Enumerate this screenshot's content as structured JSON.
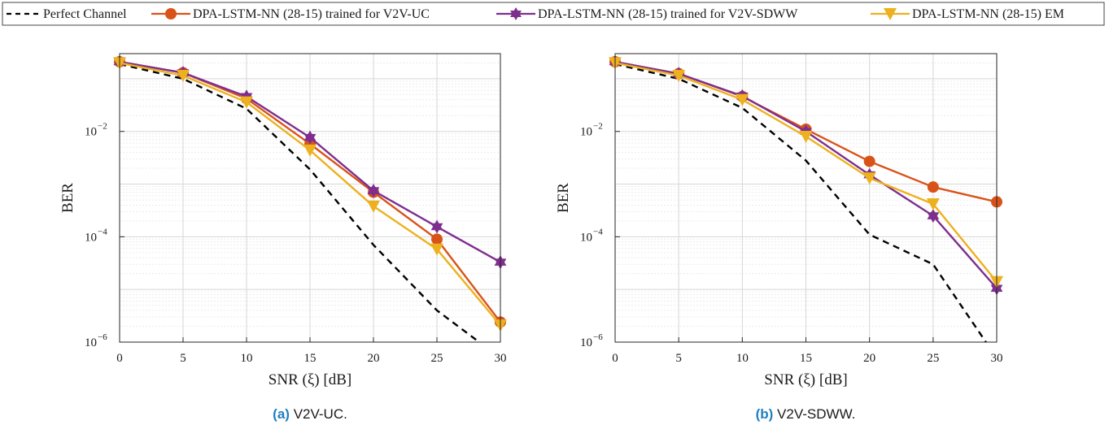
{
  "legend": {
    "items": [
      {
        "key": "perfect",
        "label": "Perfect Channel"
      },
      {
        "key": "uc",
        "label": "DPA-LSTM-NN (28-15) trained for V2V-UC"
      },
      {
        "key": "sdww",
        "label": "DPA-LSTM-NN (28-15) trained for V2V-SDWW"
      },
      {
        "key": "em",
        "label": "DPA-LSTM-NN (28-15) EM"
      }
    ]
  },
  "colors": {
    "perfect": "#000000",
    "uc": "#d95319",
    "sdww": "#7e2f8e",
    "em": "#edb120"
  },
  "markers": {
    "perfect": "none",
    "uc": "circle",
    "sdww": "hexagram",
    "em": "triangle-down"
  },
  "chart_data": [
    {
      "type": "line",
      "y_scale": "log",
      "xlabel": "SNR (ξ) [dB]",
      "ylabel": "BER",
      "xlim": [
        0,
        30
      ],
      "ylim": [
        1e-06,
        0.3
      ],
      "x_ticks": [
        "0",
        "5",
        "10",
        "15",
        "20",
        "25",
        "30"
      ],
      "y_tick_labels": [
        {
          "base": "10",
          "exp": "−2"
        },
        {
          "base": "10",
          "exp": "−4"
        },
        {
          "base": "10",
          "exp": "−6"
        }
      ],
      "grid": true,
      "caption_id": "(a)",
      "caption_text": "V2V-UC.",
      "x": [
        0,
        5,
        10,
        15,
        20,
        25,
        30
      ],
      "series": [
        {
          "key": "perfect",
          "name": "Perfect Channel",
          "style": "dashed",
          "values": [
            0.19,
            0.1,
            0.027,
            0.0019,
            7e-05,
            4e-06,
            5e-07
          ]
        },
        {
          "key": "uc",
          "name": "DPA-LSTM-NN (28-15) trained for V2V-UC",
          "values": [
            0.21,
            0.13,
            0.042,
            0.0058,
            0.0007,
            9e-05,
            2.4e-06
          ]
        },
        {
          "key": "sdww",
          "name": "DPA-LSTM-NN (28-15) trained for V2V-SDWW",
          "values": [
            0.21,
            0.13,
            0.046,
            0.0077,
            0.00075,
            0.000155,
            3.3e-05
          ]
        },
        {
          "key": "em",
          "name": "DPA-LSTM-NN (28-15) EM",
          "values": [
            0.2,
            0.115,
            0.036,
            0.0044,
            0.00038,
            5.8e-05,
            2.1e-06
          ]
        }
      ]
    },
    {
      "type": "line",
      "y_scale": "log",
      "xlabel": "SNR (ξ) [dB]",
      "ylabel": "BER",
      "xlim": [
        0,
        30
      ],
      "ylim": [
        1e-06,
        0.3
      ],
      "x_ticks": [
        "0",
        "5",
        "10",
        "15",
        "20",
        "25",
        "30"
      ],
      "y_tick_labels": [
        {
          "base": "10",
          "exp": "−2"
        },
        {
          "base": "10",
          "exp": "−4"
        },
        {
          "base": "10",
          "exp": "−6"
        }
      ],
      "grid": true,
      "caption_id": "(b)",
      "caption_text": "V2V-SDWW.",
      "x": [
        0,
        5,
        10,
        15,
        20,
        25,
        30
      ],
      "series": [
        {
          "key": "perfect",
          "name": "Perfect Channel",
          "style": "dashed",
          "values": [
            0.19,
            0.1,
            0.028,
            0.0028,
            0.00011,
            3e-05,
            5e-07
          ]
        },
        {
          "key": "uc",
          "name": "DPA-LSTM-NN (28-15) trained for V2V-UC",
          "values": [
            0.21,
            0.125,
            0.046,
            0.011,
            0.0027,
            0.00088,
            0.00046
          ]
        },
        {
          "key": "sdww",
          "name": "DPA-LSTM-NN (28-15) trained for V2V-SDWW",
          "values": [
            0.21,
            0.125,
            0.047,
            0.01,
            0.0015,
            0.00025,
            1.05e-05
          ]
        },
        {
          "key": "em",
          "name": "DPA-LSTM-NN (28-15) EM",
          "values": [
            0.2,
            0.115,
            0.04,
            0.008,
            0.0013,
            0.00042,
            1.4e-05
          ]
        }
      ]
    }
  ]
}
